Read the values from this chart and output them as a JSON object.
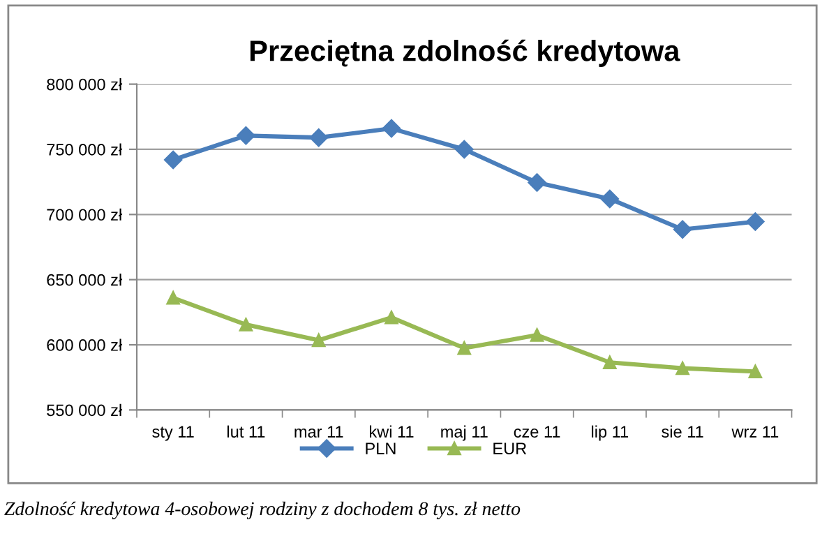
{
  "chart_data": {
    "type": "line",
    "title": "Przeciętna zdolność kredytowa",
    "categories": [
      "sty 11",
      "lut 11",
      "mar 11",
      "kwi 11",
      "maj 11",
      "cze 11",
      "lip 11",
      "sie 11",
      "wrz 11"
    ],
    "series": [
      {
        "name": "PLN",
        "color": "#4a7ebb",
        "marker": "diamond",
        "values": [
          742000,
          760500,
          759000,
          766000,
          750000,
          724500,
          712000,
          688500,
          694500
        ]
      },
      {
        "name": "EUR",
        "color": "#98b954",
        "marker": "triangle",
        "values": [
          636000,
          615500,
          603500,
          621000,
          597500,
          607500,
          586500,
          582000,
          579500
        ]
      }
    ],
    "ylim": [
      550000,
      800000
    ],
    "yticks": [
      {
        "value": 550000,
        "label": "550 000 zł"
      },
      {
        "value": 600000,
        "label": "600 000 zł"
      },
      {
        "value": 650000,
        "label": "650 000 zł"
      },
      {
        "value": 700000,
        "label": "700 000 zł"
      },
      {
        "value": 750000,
        "label": "750 000 zł"
      },
      {
        "value": 800000,
        "label": "800 000 zł"
      }
    ],
    "grid": "y",
    "legend": "bottom",
    "line_style": "solid",
    "annotations": [
      "Zdolność kredytowa 4-osobowej rodziny z dochodem 8 tys. zł netto"
    ]
  }
}
